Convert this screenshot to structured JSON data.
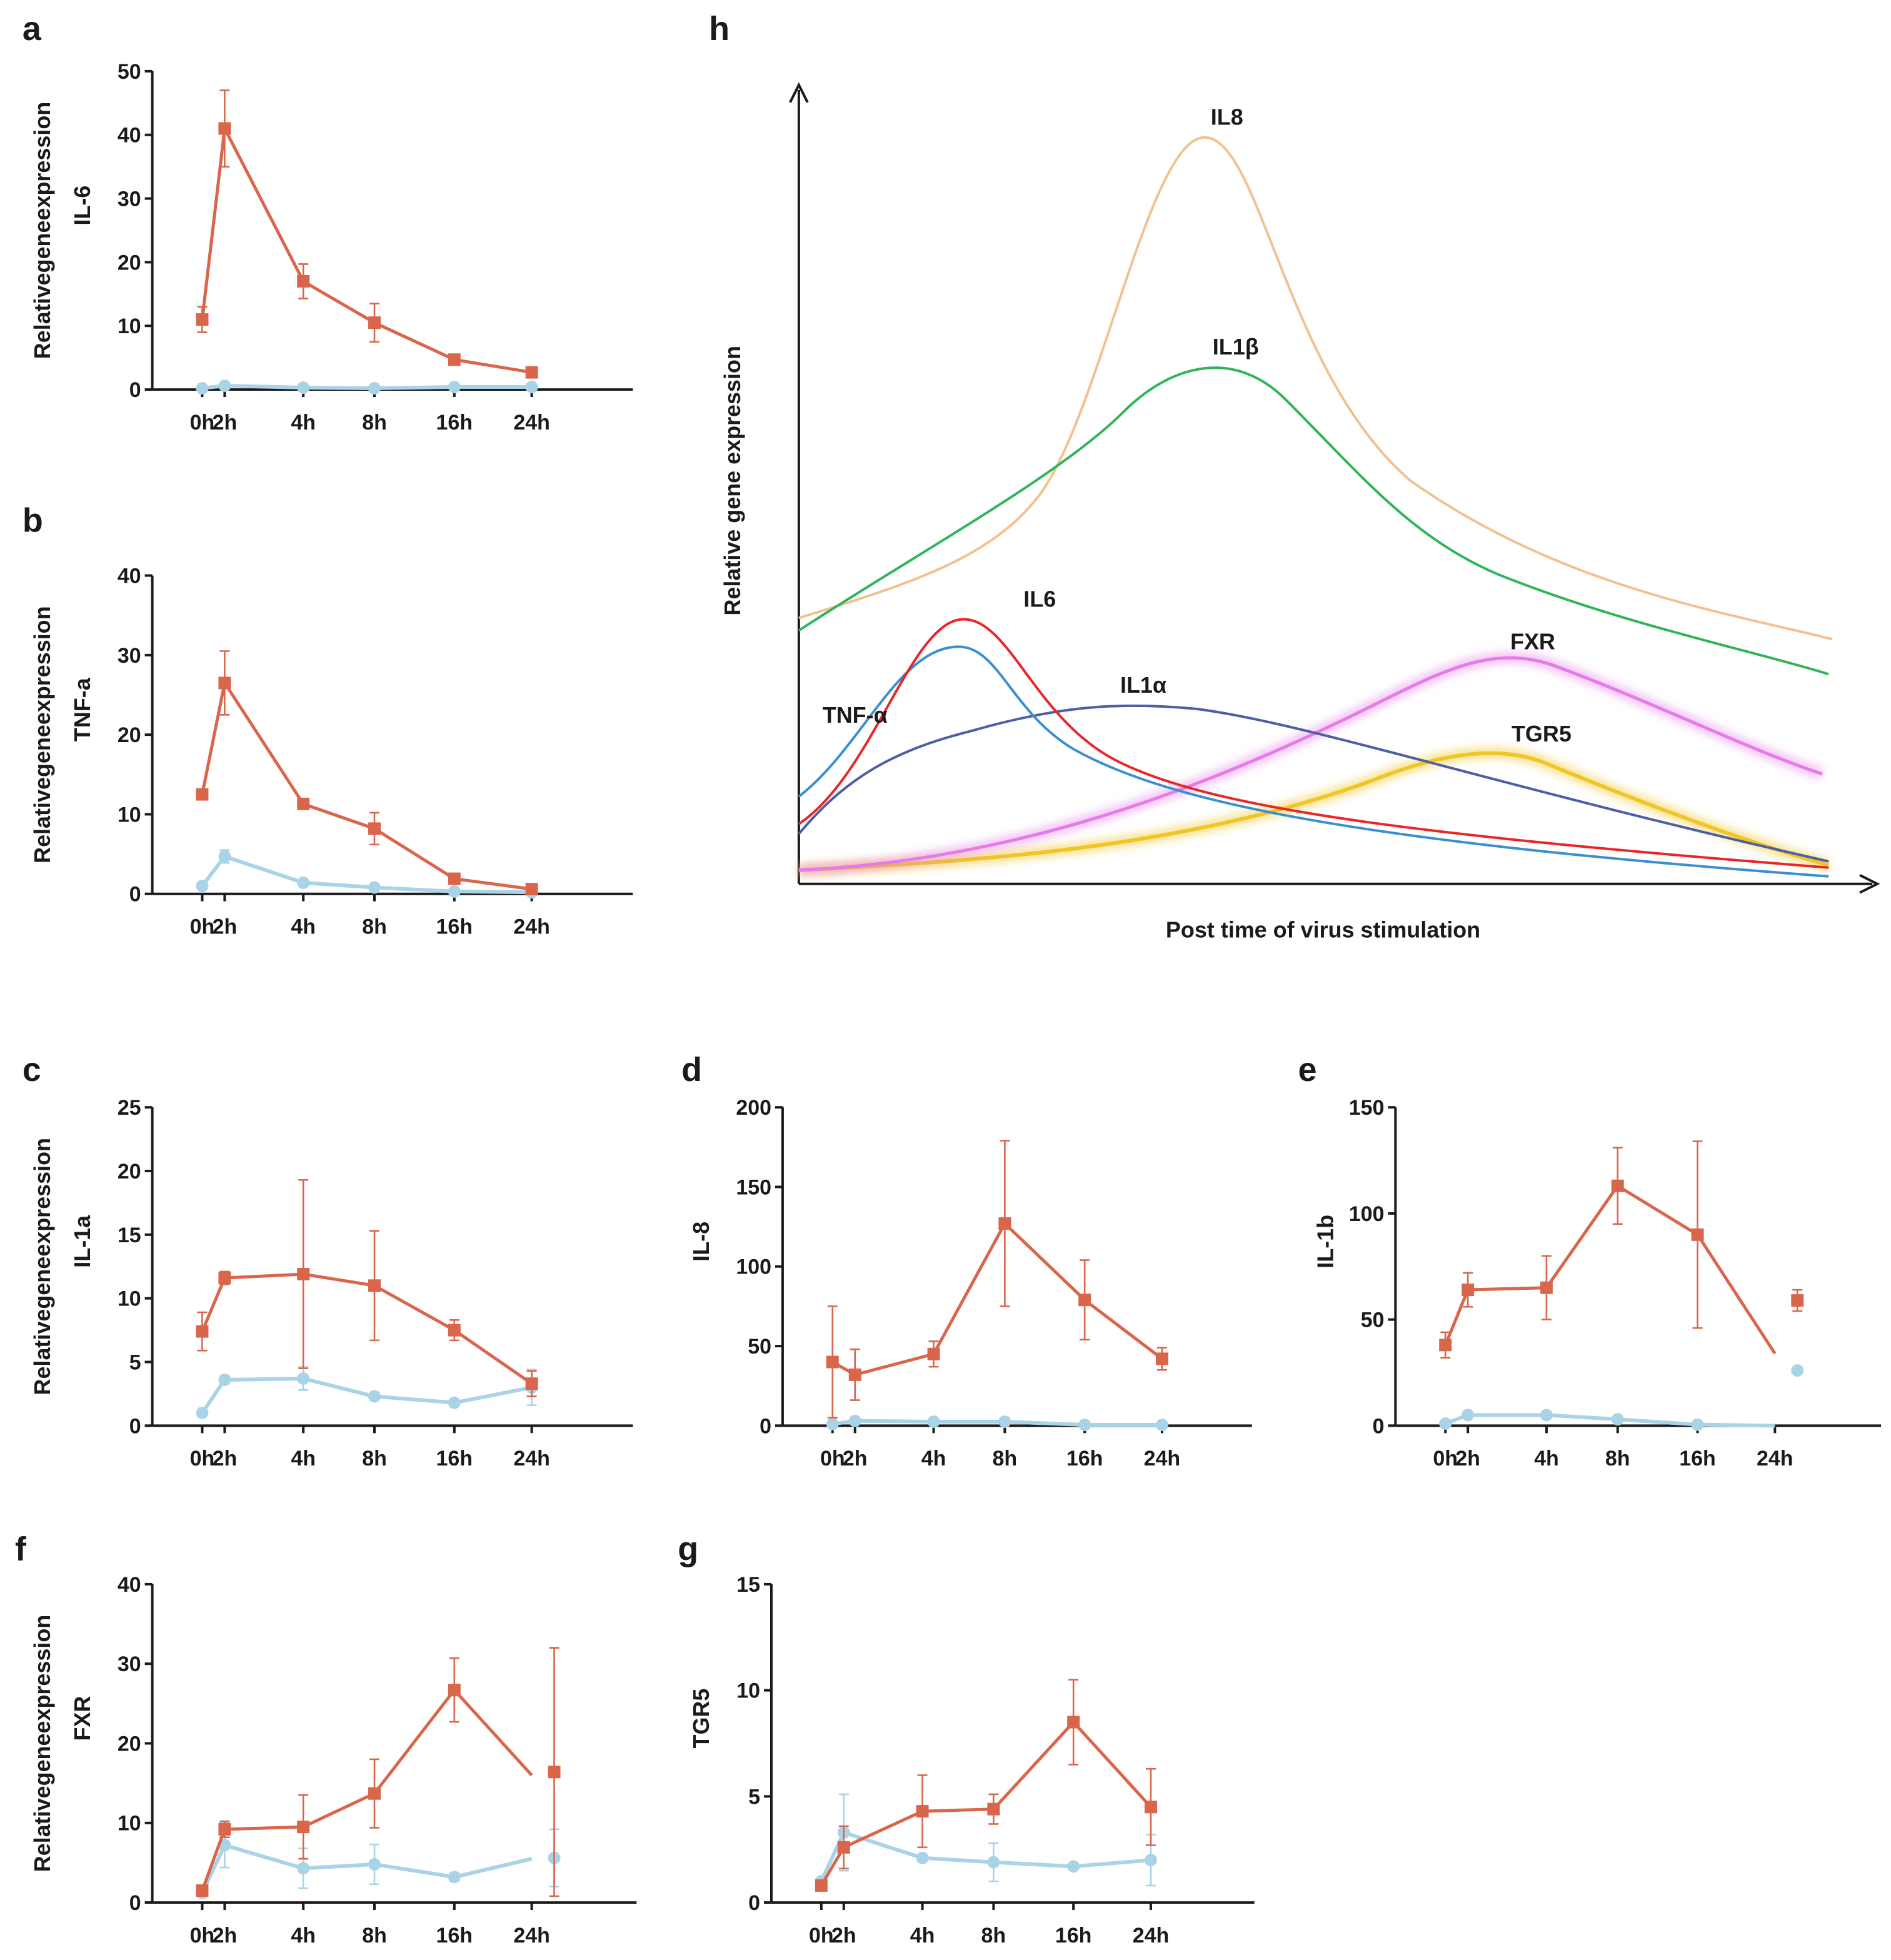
{
  "colors": {
    "infected": "#d9664a",
    "control": "#a9d3e6",
    "axis": "#1a1a1a"
  },
  "chart_data": [
    {
      "panel": "a",
      "type": "line",
      "ylabel": "Relativegeneexpression",
      "gene": "IL-6",
      "ylim": [
        0,
        50
      ],
      "yticks": [
        "0",
        "10",
        "20",
        "30",
        "40",
        "50"
      ],
      "categories": [
        "0h",
        "2h",
        "4h",
        "8h",
        "16h",
        "24h"
      ],
      "series": [
        {
          "color": "#d9664a",
          "marker": "square",
          "values": [
            11,
            41,
            17,
            10.5,
            4.7,
            2.7
          ],
          "errors": [
            2,
            6,
            2.7,
            3,
            0.5,
            0.3
          ]
        },
        {
          "color": "#a9d3e6",
          "marker": "circle",
          "values": [
            0.2,
            0.6,
            0.3,
            0.2,
            0.4,
            0.4
          ],
          "errors": [
            0,
            0.3,
            0,
            0,
            0,
            0
          ]
        }
      ]
    },
    {
      "panel": "b",
      "type": "line",
      "ylabel": "Relativegeneexpression",
      "gene": "TNF-a",
      "ylim": [
        0,
        40
      ],
      "yticks": [
        "0",
        "10",
        "20",
        "30",
        "40"
      ],
      "categories": [
        "0h",
        "2h",
        "4h",
        "8h",
        "16h",
        "24h"
      ],
      "series": [
        {
          "color": "#d9664a",
          "marker": "square",
          "values": [
            12.5,
            26.5,
            11.3,
            8.2,
            1.9,
            0.6
          ],
          "errors": [
            0.5,
            4,
            0.5,
            2,
            0.5,
            0.2
          ]
        },
        {
          "color": "#a9d3e6",
          "marker": "circle",
          "values": [
            1,
            4.7,
            1.4,
            0.8,
            0.3,
            0.2
          ],
          "errors": [
            0,
            0.8,
            0,
            0,
            0,
            0
          ]
        }
      ]
    },
    {
      "panel": "c",
      "type": "line",
      "ylabel": "Relativegeneexpression",
      "gene": "IL-1a",
      "ylim": [
        0,
        25
      ],
      "yticks": [
        "0",
        "5",
        "10",
        "15",
        "20",
        "25"
      ],
      "categories": [
        "0h",
        "2h",
        "4h",
        "8h",
        "16h",
        "24h"
      ],
      "series": [
        {
          "color": "#d9664a",
          "marker": "square",
          "values": [
            7.4,
            11.6,
            11.9,
            11,
            7.5,
            3.3
          ],
          "errors": [
            1.5,
            0.5,
            7.4,
            4.3,
            0.8,
            1
          ]
        },
        {
          "color": "#a9d3e6",
          "marker": "circle",
          "values": [
            1,
            3.6,
            3.7,
            2.3,
            1.8,
            3.0
          ],
          "errors": [
            0,
            0.3,
            0.9,
            0.3,
            0.3,
            1.4
          ]
        }
      ]
    },
    {
      "panel": "d",
      "type": "line",
      "ylabel": "",
      "gene": "IL-8",
      "ylim": [
        0,
        200
      ],
      "yticks": [
        "0",
        "50",
        "100",
        "150",
        "200"
      ],
      "categories": [
        "0h",
        "2h",
        "4h",
        "8h",
        "16h",
        "24h"
      ],
      "series": [
        {
          "color": "#d9664a",
          "marker": "square",
          "values": [
            40,
            32,
            45,
            127,
            79,
            42
          ],
          "errors": [
            35,
            16,
            8,
            52,
            25,
            7
          ]
        },
        {
          "color": "#a9d3e6",
          "marker": "circle",
          "values": [
            1,
            3,
            2.5,
            2.5,
            0.5,
            0.5
          ],
          "errors": [
            0,
            0,
            0,
            0,
            0,
            0
          ]
        }
      ]
    },
    {
      "panel": "e",
      "type": "line",
      "ylabel": "",
      "gene": "IL-1b",
      "ylim": [
        0,
        150
      ],
      "yticks": [
        "0",
        "50",
        "100",
        "150"
      ],
      "categories": [
        "0h",
        "2h",
        "4h",
        "8h",
        "16h",
        "24h"
      ],
      "series": [
        {
          "color": "#d9664a",
          "marker": "square",
          "values": [
            38,
            64,
            65,
            113,
            90,
            34
          ],
          "errors": [
            6,
            8,
            15,
            18,
            44,
            0
          ],
          "markers_hidden": [
            5
          ],
          "offset_point": {
            "value": 59,
            "error": 5
          }
        },
        {
          "color": "#a9d3e6",
          "marker": "circle",
          "values": [
            1,
            5,
            5,
            3,
            0.5,
            0
          ],
          "errors": [
            0,
            0,
            0,
            0,
            0,
            0
          ],
          "markers_hidden": [
            5
          ],
          "offset_point": {
            "value": 26,
            "error": 0
          }
        }
      ]
    },
    {
      "panel": "f",
      "type": "line",
      "ylabel": "Relativegeneexpression",
      "gene": "FXR",
      "ylim": [
        0,
        40
      ],
      "yticks": [
        "0",
        "10",
        "20",
        "30",
        "40"
      ],
      "categories": [
        "0h",
        "2h",
        "4h",
        "8h",
        "16h",
        "24h"
      ],
      "series": [
        {
          "color": "#d9664a",
          "marker": "square",
          "values": [
            1.5,
            9.2,
            9.5,
            13.7,
            26.7,
            16
          ],
          "errors": [
            0.5,
            1,
            4,
            4.3,
            4,
            0
          ],
          "markers_hidden": [
            5
          ],
          "offset_point": {
            "value": 16.4,
            "error": 15.6
          }
        },
        {
          "color": "#a9d3e6",
          "marker": "circle",
          "values": [
            1.2,
            7.2,
            4.3,
            4.8,
            3.2,
            5.5
          ],
          "errors": [
            0,
            2.8,
            2.5,
            2.5,
            0.5,
            0
          ],
          "markers_hidden": [
            5
          ],
          "offset_point": {
            "value": 5.6,
            "error": 3.6
          }
        }
      ]
    },
    {
      "panel": "g",
      "type": "line",
      "ylabel": "",
      "gene": "TGR5",
      "ylim": [
        0,
        15
      ],
      "yticks": [
        "0",
        "5",
        "10",
        "15"
      ],
      "categories": [
        "0h",
        "2h",
        "4h",
        "8h",
        "16h",
        "24h"
      ],
      "series": [
        {
          "color": "#d9664a",
          "marker": "square",
          "values": [
            0.8,
            2.6,
            4.3,
            4.4,
            8.5,
            4.5
          ],
          "errors": [
            0,
            1,
            1.7,
            0.7,
            2,
            1.8
          ]
        },
        {
          "color": "#a9d3e6",
          "marker": "circle",
          "values": [
            1.0,
            3.3,
            2.1,
            1.9,
            1.7,
            2.0
          ],
          "errors": [
            0,
            1.8,
            0,
            0.9,
            0,
            1.2
          ]
        }
      ]
    },
    {
      "panel": "h",
      "type": "line",
      "ylabel": "Relative gene expression",
      "xlabel": "Post time of virus stimulation",
      "curves": [
        {
          "label": "IL8",
          "color": "#f2c18f"
        },
        {
          "label": "IL1β",
          "color": "#2fb45a"
        },
        {
          "label": "IL6",
          "color": "#e8262a"
        },
        {
          "label": "TNF-α",
          "color": "#3a8fd0"
        },
        {
          "label": "IL1α",
          "color": "#4b5ea6"
        },
        {
          "label": "FXR",
          "color": "#e57ae8"
        },
        {
          "label": "TGR5",
          "color": "#f2c526"
        }
      ]
    }
  ]
}
